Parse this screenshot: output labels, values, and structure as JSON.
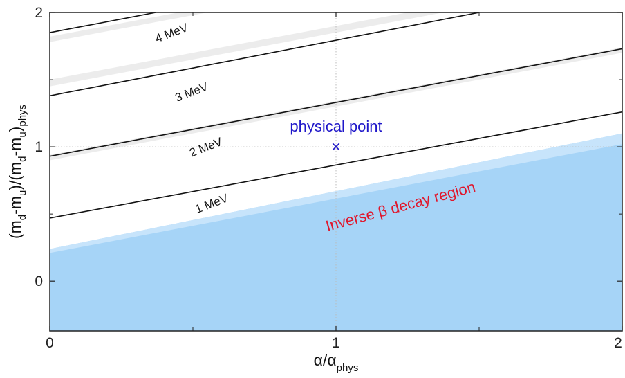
{
  "chart_data": {
    "type": "line",
    "xlim": [
      0,
      2
    ],
    "ylim": [
      -0.37,
      2
    ],
    "xticks": [
      "0",
      "1",
      "2"
    ],
    "yticks": [
      "0",
      "1",
      "2"
    ],
    "grid": "dotted lines at x=1 and y=1",
    "xlabel": {
      "main": "α/α",
      "sub": "phys"
    },
    "ylabel": {
      "p1": "(m",
      "s1": "d",
      "p2": "-m",
      "s2": "u",
      "p3": ")/(m",
      "s3": "d",
      "p4": "-m",
      "s4": "u",
      "p5": ")",
      "s5": "phys"
    },
    "series": [
      {
        "label": "1 MeV",
        "x": [
          0,
          2
        ],
        "y": [
          0.47,
          1.26
        ],
        "label_at": [
          0.57,
          0.55
        ],
        "label_angle": -21
      },
      {
        "label": "2 MeV",
        "x": [
          0,
          2
        ],
        "y": [
          0.93,
          1.73
        ],
        "label_at": [
          0.55,
          0.97
        ],
        "label_angle": -21
      },
      {
        "label": "3 MeV",
        "x": [
          0,
          1.5
        ],
        "y": [
          1.38,
          2.0
        ],
        "label_at": [
          0.5,
          1.38
        ],
        "label_angle": -21
      },
      {
        "label": "4 MeV",
        "x": [
          0,
          0.37
        ],
        "y": [
          1.85,
          2.0
        ],
        "label_at": [
          0.43,
          1.82
        ],
        "label_angle": -21
      }
    ],
    "bands": [
      {
        "x": [
          0,
          2
        ],
        "lower": [
          1.45,
          2.25
        ],
        "upper": [
          1.5,
          2.3
        ]
      },
      {
        "x": [
          0,
          2
        ],
        "lower": [
          1.78,
          2.58
        ],
        "upper": [
          1.82,
          2.62
        ]
      },
      {
        "x": [
          0,
          2
        ],
        "lower": [
          0.9,
          1.7
        ],
        "upper": [
          0.94,
          1.74
        ]
      }
    ],
    "region": {
      "label": "Inverse β decay region",
      "x": [
        0,
        2
      ],
      "y_boundary": [
        0.24,
        1.1
      ],
      "color": "#a6d4f7",
      "label_at": [
        1.23,
        0.52
      ],
      "label_angle": -15
    },
    "point": {
      "label": "physical point",
      "x": 1,
      "y": 1,
      "marker": "×",
      "color": "#1f17c9"
    }
  }
}
